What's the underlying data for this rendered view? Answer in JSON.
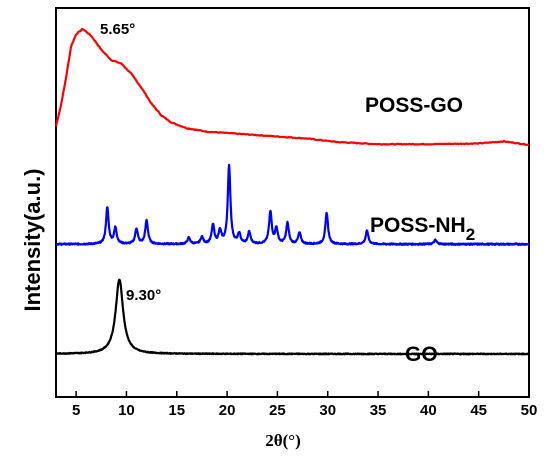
{
  "chart_data": {
    "type": "line",
    "xlabel": "2θ(°)",
    "ylabel": "Intensity(a.u.)",
    "xlim": [
      3,
      50
    ],
    "x_ticks": [
      5,
      10,
      15,
      20,
      25,
      30,
      35,
      40,
      45,
      50
    ],
    "y_ticks_shown": false,
    "grid": false,
    "legend": "none",
    "series": [
      {
        "name": "POSS-GO",
        "color": "#ff0000",
        "kind": "broad",
        "baseline": 3.0,
        "points": [
          [
            3,
            3.3
          ],
          [
            3.5,
            3.6
          ],
          [
            4,
            4.0
          ],
          [
            4.5,
            4.45
          ],
          [
            5,
            4.62
          ],
          [
            5.65,
            4.7
          ],
          [
            6.5,
            4.6
          ],
          [
            7.5,
            4.4
          ],
          [
            8.5,
            4.25
          ],
          [
            9.5,
            4.2
          ],
          [
            10.5,
            4.05
          ],
          [
            11.5,
            3.85
          ],
          [
            12.5,
            3.62
          ],
          [
            13.5,
            3.45
          ],
          [
            14.5,
            3.35
          ],
          [
            16,
            3.27
          ],
          [
            18,
            3.22
          ],
          [
            20,
            3.2
          ],
          [
            22,
            3.18
          ],
          [
            25,
            3.15
          ],
          [
            28,
            3.12
          ],
          [
            31,
            3.07
          ],
          [
            35,
            3.04
          ],
          [
            40,
            3.04
          ],
          [
            45,
            3.05
          ],
          [
            47.5,
            3.08
          ],
          [
            50,
            3.03
          ]
        ]
      },
      {
        "name": "POSS-NH2",
        "color": "#0000ff",
        "kind": "peaks",
        "baseline": 1.6,
        "peaks": [
          [
            8.1,
            0.52
          ],
          [
            8.9,
            0.23
          ],
          [
            11.0,
            0.22
          ],
          [
            12.0,
            0.34
          ],
          [
            16.2,
            0.09
          ],
          [
            17.5,
            0.1
          ],
          [
            18.6,
            0.27
          ],
          [
            19.3,
            0.18
          ],
          [
            20.2,
            1.12
          ],
          [
            21.2,
            0.14
          ],
          [
            22.2,
            0.17
          ],
          [
            24.3,
            0.46
          ],
          [
            24.9,
            0.22
          ],
          [
            26.0,
            0.3
          ],
          [
            27.2,
            0.16
          ],
          [
            29.9,
            0.45
          ],
          [
            33.9,
            0.19
          ],
          [
            40.7,
            0.06
          ]
        ]
      },
      {
        "name": "GO",
        "color": "#000000",
        "kind": "peaks",
        "baseline": 0.02,
        "peaks": [
          [
            9.3,
            1.07
          ]
        ]
      }
    ],
    "annotations": [
      {
        "text": "5.65°",
        "x": 5.65,
        "series": "POSS-GO"
      },
      {
        "text": "9.30°",
        "x": 9.3,
        "series": "GO"
      }
    ],
    "series_labels": {
      "poss_go": "POSS-GO",
      "poss_nh2_main": "POSS-NH",
      "poss_nh2_sub": "2",
      "go": "GO"
    }
  }
}
